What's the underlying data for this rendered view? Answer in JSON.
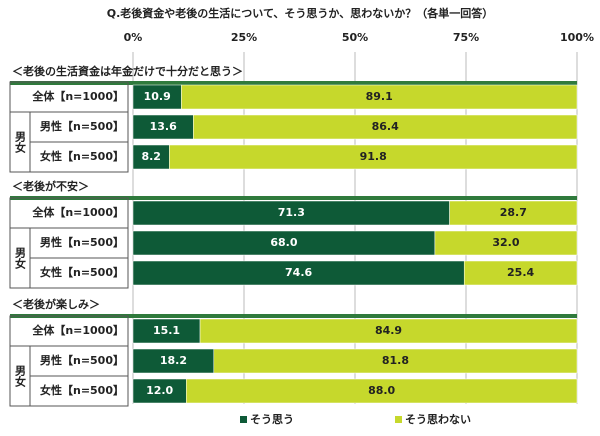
{
  "chart_data": {
    "type": "bar",
    "orientation": "horizontal",
    "stacked": true,
    "title": "Q.老後資金や老後の生活について、そう思うか、思わないか？（各単一回答）",
    "group_titles": [
      "＜老後の生活資金は年金だけで十分だと思う＞",
      "＜老後が不安＞",
      "＜老後が楽しみ＞"
    ],
    "side_label": "男女",
    "categories": [
      "全体【n=1000】",
      "男性【n=500】",
      "女性【n=500】",
      "全体【n=1000】",
      "男性【n=500】",
      "女性【n=500】",
      "全体【n=1000】",
      "男性【n=500】",
      "女性【n=500】"
    ],
    "series": [
      {
        "name": "そう思う",
        "color": "#0e5a37",
        "text_color": "#ffffff",
        "values": [
          10.9,
          13.6,
          8.2,
          71.3,
          68.0,
          74.6,
          15.1,
          18.2,
          12.0
        ],
        "value_labels": [
          "10.9",
          "13.6",
          "8.2",
          "71.3",
          "68.0",
          "74.6",
          "15.1",
          "18.2",
          "12.0"
        ]
      },
      {
        "name": "そう思わない",
        "color": "#c6d82c",
        "text_color": "#222222",
        "values": [
          89.1,
          86.4,
          91.8,
          28.7,
          32.0,
          25.4,
          84.9,
          81.8,
          88.0
        ],
        "value_labels": [
          "89.1",
          "86.4",
          "91.8",
          "28.7",
          "32.0",
          "25.4",
          "84.9",
          "81.8",
          "88.0"
        ]
      }
    ],
    "xlim": [
      0,
      100
    ],
    "xticks": [
      {
        "value": 0,
        "label": "0%"
      },
      {
        "value": 25,
        "label": "25%"
      },
      {
        "value": 50,
        "label": "50%"
      },
      {
        "value": 75,
        "label": "75%"
      },
      {
        "value": 100,
        "label": "100%"
      }
    ],
    "grid": true
  }
}
